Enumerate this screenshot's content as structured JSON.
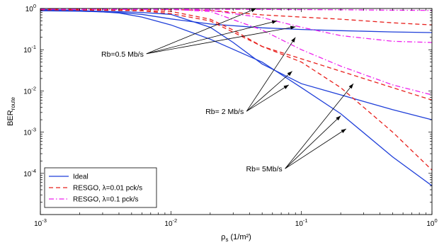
{
  "chart_data": {
    "type": "line",
    "xlabel": {
      "main": "ρ",
      "sub": "s",
      "unit": " (1/m²)"
    },
    "ylabel": {
      "main": "BER",
      "sub": "route"
    },
    "xscale": "log",
    "yscale": "log",
    "xlim": [
      0.001,
      1
    ],
    "ylim": [
      1e-05,
      1
    ],
    "grid": false,
    "legend_position": "bottom-left",
    "x_ticks": [
      {
        "base": "10",
        "exp": "-3"
      },
      {
        "base": "10",
        "exp": "-2"
      },
      {
        "base": "10",
        "exp": "-1"
      },
      {
        "base": "10",
        "exp": "0"
      }
    ],
    "y_ticks": [
      {
        "base": "10",
        "exp": "0"
      },
      {
        "base": "10",
        "exp": "-1"
      },
      {
        "base": "10",
        "exp": "-2"
      },
      {
        "base": "10",
        "exp": "-3"
      },
      {
        "base": "10",
        "exp": "-4"
      }
    ],
    "series": [
      {
        "name": "Ideal",
        "group": "ideal",
        "color": "#1f3fd9",
        "dash": "",
        "rate": "0.5",
        "x": [
          0.001,
          0.002,
          0.004,
          0.006,
          0.01,
          0.02,
          0.05,
          0.1,
          0.2,
          0.5,
          1
        ],
        "y": [
          0.88,
          0.86,
          0.8,
          0.72,
          0.56,
          0.42,
          0.34,
          0.31,
          0.29,
          0.27,
          0.26
        ]
      },
      {
        "name": "",
        "group": "ideal",
        "color": "#1f3fd9",
        "dash": "",
        "rate": "2",
        "x": [
          0.001,
          0.002,
          0.004,
          0.006,
          0.01,
          0.02,
          0.03,
          0.05,
          0.1,
          0.2,
          0.5,
          1
        ],
        "y": [
          0.9,
          0.88,
          0.84,
          0.8,
          0.72,
          0.35,
          0.15,
          0.045,
          0.015,
          0.008,
          0.0035,
          0.002
        ]
      },
      {
        "name": "",
        "group": "ideal",
        "color": "#1f3fd9",
        "dash": "",
        "rate": "5",
        "x": [
          0.001,
          0.002,
          0.004,
          0.006,
          0.01,
          0.02,
          0.05,
          0.1,
          0.2,
          0.5,
          1
        ],
        "y": [
          0.95,
          0.9,
          0.78,
          0.62,
          0.4,
          0.18,
          0.05,
          0.012,
          0.0028,
          0.00025,
          5e-05
        ]
      },
      {
        "name": "RESGO, λ=0.01 pck/s",
        "group": "resgo001",
        "color": "#e8201c",
        "dash": "6,4",
        "rate": "0.5",
        "x": [
          0.001,
          0.01,
          0.02,
          0.05,
          0.1,
          0.2,
          0.5,
          1
        ],
        "y": [
          0.95,
          0.94,
          0.9,
          0.7,
          0.62,
          0.55,
          0.45,
          0.4
        ]
      },
      {
        "name": "",
        "group": "resgo001",
        "color": "#e8201c",
        "dash": "6,4",
        "rate": "2",
        "x": [
          0.001,
          0.004,
          0.01,
          0.02,
          0.03,
          0.05,
          0.1,
          0.2,
          0.5,
          1
        ],
        "y": [
          0.93,
          0.9,
          0.85,
          0.55,
          0.3,
          0.12,
          0.06,
          0.03,
          0.012,
          0.006
        ]
      },
      {
        "name": "",
        "group": "resgo001",
        "color": "#e8201c",
        "dash": "6,4",
        "rate": "5",
        "x": [
          0.001,
          0.003,
          0.006,
          0.01,
          0.02,
          0.05,
          0.1,
          0.2,
          0.5,
          1
        ],
        "y": [
          0.97,
          0.95,
          0.88,
          0.75,
          0.5,
          0.12,
          0.05,
          0.012,
          0.001,
          0.00012
        ]
      },
      {
        "name": "RESGO, λ=0.1 pck/s",
        "group": "resgo01",
        "color": "#ee20ee",
        "dash": "7,3,1.5,3",
        "rate": "0.5",
        "x": [
          0.001,
          0.01,
          0.05,
          0.1,
          0.2,
          0.5,
          1
        ],
        "y": [
          0.97,
          0.96,
          0.95,
          0.94,
          0.93,
          0.91,
          0.9
        ]
      },
      {
        "name": "",
        "group": "resgo01",
        "color": "#ee20ee",
        "dash": "7,3,1.5,3",
        "rate": "2",
        "x": [
          0.001,
          0.01,
          0.02,
          0.05,
          0.1,
          0.2,
          0.5,
          1
        ],
        "y": [
          0.96,
          0.95,
          0.9,
          0.6,
          0.35,
          0.22,
          0.16,
          0.15
        ]
      },
      {
        "name": "",
        "group": "resgo01",
        "color": "#ee20ee",
        "dash": "7,3,1.5,3",
        "rate": "5",
        "x": [
          0.001,
          0.01,
          0.02,
          0.05,
          0.1,
          0.2,
          0.5,
          1
        ],
        "y": [
          0.98,
          0.95,
          0.85,
          0.3,
          0.1,
          0.04,
          0.014,
          0.008
        ]
      }
    ],
    "legend": [
      {
        "label": "Ideal",
        "color": "#1f3fd9",
        "dash": ""
      },
      {
        "label": "RESGO, λ=0.01 pck/s",
        "color": "#e8201c",
        "dash": "6,4"
      },
      {
        "label": "RESGO, λ=0.1 pck/s",
        "color": "#ee20ee",
        "dash": "7,3,1.5,3"
      }
    ],
    "annotations": [
      {
        "text": "Rb=0.5 Mb/s",
        "anchor": [
          0.0065,
          0.08
        ],
        "targets": [
          [
            0.045,
            1.0
          ],
          [
            0.065,
            0.5
          ],
          [
            0.09,
            0.36
          ]
        ]
      },
      {
        "text": "Rb= 2 Mb/s",
        "anchor": [
          0.038,
          0.0032
        ],
        "targets": [
          [
            0.09,
            0.2
          ],
          [
            0.085,
            0.03
          ],
          [
            0.08,
            0.014
          ]
        ]
      },
      {
        "text": "Rb= 5Mb/s",
        "anchor": [
          0.075,
          0.00013
        ],
        "targets": [
          [
            0.25,
            0.015
          ],
          [
            0.2,
            0.0025
          ],
          [
            0.22,
            0.0012
          ]
        ]
      }
    ]
  }
}
